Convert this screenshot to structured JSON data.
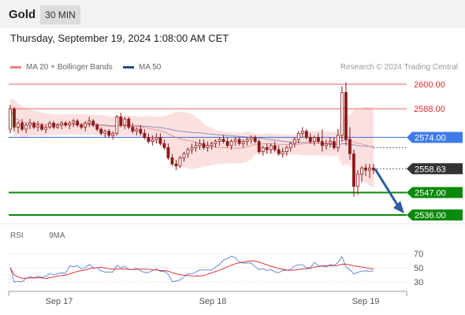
{
  "header": {
    "symbol": "Gold",
    "interval": "30 MIN",
    "timestamp": "Thursday, September 19, 2024 1:08:00 AM CET"
  },
  "legend": {
    "bollinger_label": "MA 20 + Bollinger Bands",
    "bollinger_color": "#f08080",
    "ma50_label": "MA 50",
    "ma50_color": "#1f4e8c",
    "credit": "Research © 2024 Trading Central"
  },
  "chart_data": {
    "type": "candlestick",
    "title": "",
    "ylim": [
      2532,
      2603
    ],
    "x_ticks": [
      "Sep 17",
      "Sep 18",
      "Sep 19"
    ],
    "current_price": {
      "label": "2558.63",
      "value": 2558.63
    },
    "levels": [
      {
        "label": "2600.00",
        "value": 2600.0,
        "kind": "resistance",
        "style": "thin"
      },
      {
        "label": "2588.00",
        "value": 2588.0,
        "kind": "resistance",
        "style": "thin"
      },
      {
        "label": "2574.00",
        "value": 2574.0,
        "kind": "pivot",
        "style": "thin"
      },
      {
        "label": "2547.00",
        "value": 2547.0,
        "kind": "support",
        "style": "thick"
      },
      {
        "label": "2536.00",
        "value": 2536.0,
        "kind": "support",
        "style": "thick"
      }
    ],
    "forecast_arrow": {
      "from": 2558.5,
      "to": 2537.5
    },
    "colors": {
      "candle": "#8b1a1a",
      "resistance": "#f08080",
      "pivot": "#4a7bdc",
      "support": "#0a8a0a",
      "current": "#333333",
      "arrow": "#2e5c9e",
      "ma50": "#4a6fa5",
      "band_fill": "#fbd5d5"
    },
    "candles": [
      [
        2578,
        2590,
        2576,
        2588
      ],
      [
        2588,
        2589,
        2577,
        2579
      ],
      [
        2579,
        2582,
        2576,
        2581
      ],
      [
        2581,
        2583,
        2577,
        2578
      ],
      [
        2578,
        2581,
        2576,
        2580
      ],
      [
        2580,
        2583,
        2578,
        2581
      ],
      [
        2581,
        2582,
        2578,
        2579
      ],
      [
        2579,
        2582,
        2577,
        2580
      ],
      [
        2580,
        2581,
        2577,
        2578
      ],
      [
        2578,
        2580,
        2576,
        2579
      ],
      [
        2579,
        2582,
        2578,
        2581
      ],
      [
        2581,
        2582,
        2578,
        2579
      ],
      [
        2579,
        2581,
        2578,
        2580
      ],
      [
        2580,
        2582,
        2578,
        2581
      ],
      [
        2581,
        2582,
        2579,
        2580
      ],
      [
        2580,
        2582,
        2578,
        2581
      ],
      [
        2581,
        2583,
        2579,
        2582
      ],
      [
        2582,
        2583,
        2579,
        2580
      ],
      [
        2580,
        2581,
        2578,
        2579
      ],
      [
        2579,
        2582,
        2577,
        2581
      ],
      [
        2581,
        2584,
        2579,
        2582
      ],
      [
        2582,
        2583,
        2579,
        2580
      ],
      [
        2580,
        2581,
        2577,
        2578
      ],
      [
        2578,
        2579,
        2575,
        2576
      ],
      [
        2576,
        2578,
        2574,
        2577
      ],
      [
        2577,
        2578,
        2574,
        2575
      ],
      [
        2575,
        2577,
        2573,
        2576
      ],
      [
        2576,
        2585,
        2575,
        2584
      ],
      [
        2584,
        2586,
        2579,
        2580
      ],
      [
        2580,
        2584,
        2578,
        2583
      ],
      [
        2583,
        2584,
        2578,
        2579
      ],
      [
        2579,
        2581,
        2576,
        2577
      ],
      [
        2577,
        2579,
        2575,
        2578
      ],
      [
        2578,
        2580,
        2575,
        2576
      ],
      [
        2576,
        2578,
        2573,
        2574
      ],
      [
        2574,
        2576,
        2571,
        2572
      ],
      [
        2572,
        2575,
        2570,
        2573
      ],
      [
        2573,
        2576,
        2571,
        2574
      ],
      [
        2574,
        2576,
        2570,
        2571
      ],
      [
        2571,
        2573,
        2568,
        2569
      ],
      [
        2569,
        2571,
        2563,
        2564
      ],
      [
        2564,
        2566,
        2560,
        2561
      ],
      [
        2561,
        2563,
        2558,
        2560
      ],
      [
        2560,
        2565,
        2559,
        2564
      ],
      [
        2564,
        2567,
        2562,
        2566
      ],
      [
        2566,
        2569,
        2564,
        2568
      ],
      [
        2568,
        2571,
        2566,
        2569
      ],
      [
        2569,
        2572,
        2567,
        2570
      ],
      [
        2570,
        2573,
        2568,
        2571
      ],
      [
        2571,
        2573,
        2568,
        2569
      ],
      [
        2569,
        2572,
        2567,
        2570
      ],
      [
        2570,
        2572,
        2568,
        2571
      ],
      [
        2571,
        2573,
        2569,
        2572
      ],
      [
        2572,
        2574,
        2570,
        2573
      ],
      [
        2573,
        2575,
        2571,
        2572
      ],
      [
        2572,
        2574,
        2569,
        2570
      ],
      [
        2570,
        2573,
        2568,
        2572
      ],
      [
        2572,
        2574,
        2570,
        2573
      ],
      [
        2573,
        2574,
        2570,
        2571
      ],
      [
        2571,
        2573,
        2569,
        2572
      ],
      [
        2572,
        2574,
        2570,
        2573
      ],
      [
        2573,
        2575,
        2571,
        2574
      ],
      [
        2574,
        2575,
        2571,
        2572
      ],
      [
        2572,
        2573,
        2566,
        2567
      ],
      [
        2567,
        2570,
        2565,
        2569
      ],
      [
        2569,
        2571,
        2566,
        2568
      ],
      [
        2568,
        2571,
        2566,
        2570
      ],
      [
        2570,
        2572,
        2567,
        2568
      ],
      [
        2568,
        2570,
        2565,
        2566
      ],
      [
        2566,
        2569,
        2564,
        2567
      ],
      [
        2567,
        2570,
        2565,
        2569
      ],
      [
        2569,
        2572,
        2567,
        2571
      ],
      [
        2571,
        2574,
        2569,
        2573
      ],
      [
        2573,
        2577,
        2571,
        2576
      ],
      [
        2576,
        2579,
        2574,
        2577
      ],
      [
        2577,
        2578,
        2573,
        2574
      ],
      [
        2574,
        2576,
        2571,
        2572
      ],
      [
        2572,
        2575,
        2570,
        2574
      ],
      [
        2574,
        2576,
        2571,
        2572
      ],
      [
        2572,
        2578,
        2567,
        2570
      ],
      [
        2570,
        2573,
        2568,
        2571
      ],
      [
        2571,
        2574,
        2569,
        2572
      ],
      [
        2572,
        2574,
        2568,
        2569
      ],
      [
        2569,
        2578,
        2567,
        2575
      ],
      [
        2575,
        2599,
        2572,
        2596
      ],
      [
        2596,
        2601,
        2570,
        2573
      ],
      [
        2573,
        2579,
        2563,
        2566
      ],
      [
        2566,
        2568,
        2545,
        2550
      ],
      [
        2550,
        2558,
        2546,
        2556
      ],
      [
        2556,
        2560,
        2552,
        2559
      ],
      [
        2559,
        2561,
        2555,
        2558
      ],
      [
        2558,
        2561,
        2554,
        2559
      ],
      [
        2559,
        2561,
        2556,
        2558
      ]
    ],
    "rsi": {
      "labels": {
        "rsi": "RSI",
        "ma": "9MA"
      },
      "colors": {
        "rsi": "#5b7fd6",
        "ma": "#e02020"
      },
      "levels": [
        {
          "label": "70",
          "value": 70
        },
        {
          "label": "50",
          "value": 50
        },
        {
          "label": "30",
          "value": 30
        }
      ],
      "ylim": [
        15,
        85
      ]
    }
  }
}
